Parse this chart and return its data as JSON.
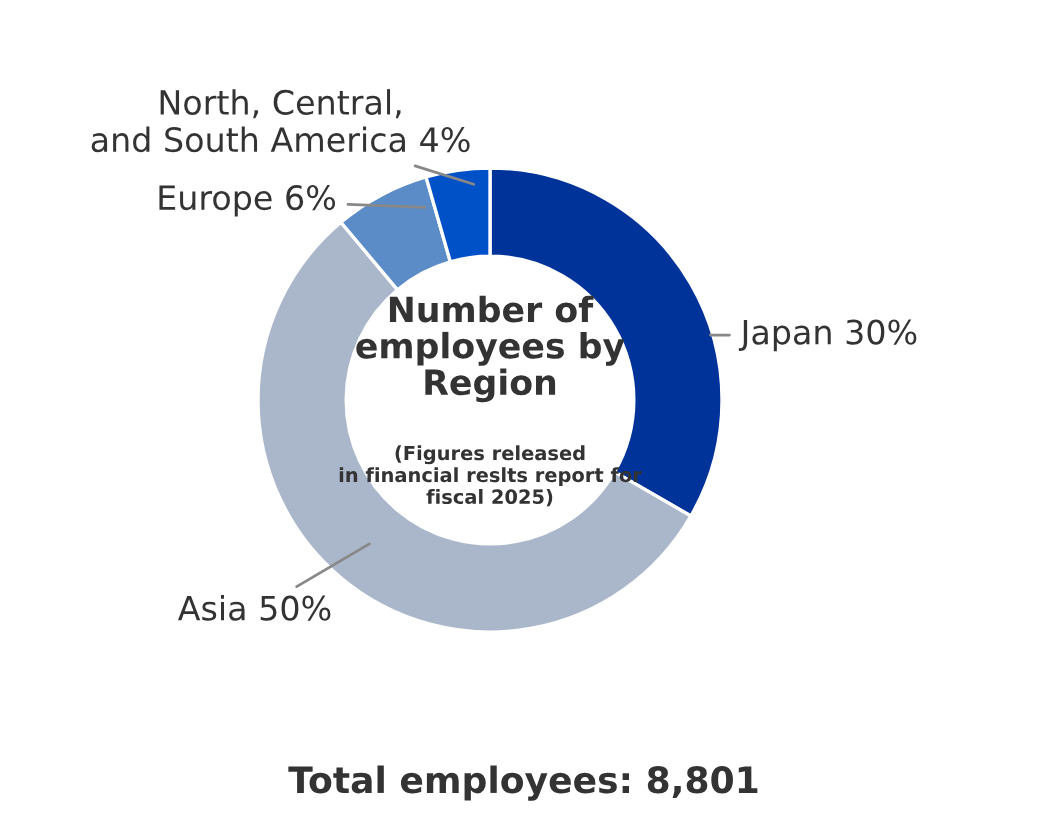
{
  "chart_data": {
    "type": "donut",
    "title": "Number of employees by Region",
    "subtitle": "(Figures released in financial reslts report for fiscal 2025)",
    "categories": [
      "Japan 30%",
      "Asia 50%",
      "Europe 6%",
      "North, Central, and South America 4%"
    ],
    "values": [
      30,
      50,
      6,
      4
    ],
    "colors": [
      "#003399",
      "#aab7cb",
      "#5b8cc8",
      "#0050c8"
    ],
    "annotations": [
      "Total employees: 8,801"
    ]
  }
}
